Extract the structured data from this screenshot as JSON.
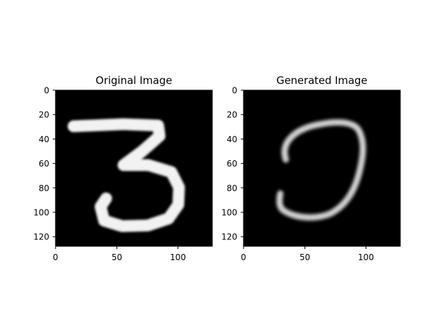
{
  "chart_data": [
    {
      "type": "image",
      "title": "Original Image",
      "image_size": [
        128,
        128
      ],
      "colormap": "gray",
      "content": "handwritten digit 3",
      "xlim": [
        0,
        128
      ],
      "ylim": [
        128,
        0
      ],
      "xticks": [
        0,
        50,
        100
      ],
      "yticks": [
        0,
        20,
        40,
        60,
        80,
        100,
        120
      ],
      "xtick_labels": [
        "0",
        "50",
        "100"
      ],
      "ytick_labels": [
        "0",
        "20",
        "40",
        "60",
        "80",
        "100",
        "120"
      ],
      "background_color": "#000000",
      "stroke_color": "#f2f2f2"
    },
    {
      "type": "image",
      "title": "Generated Image",
      "image_size": [
        128,
        128
      ],
      "colormap": "gray",
      "content": "blurry curved stroke",
      "xlim": [
        0,
        128
      ],
      "ylim": [
        128,
        0
      ],
      "xticks": [
        0,
        50,
        100
      ],
      "yticks": [
        0,
        20,
        40,
        60,
        80,
        100,
        120
      ],
      "xtick_labels": [
        "0",
        "50",
        "100"
      ],
      "ytick_labels": [
        "0",
        "20",
        "40",
        "60",
        "80",
        "100",
        "120"
      ],
      "background_color": "#000000",
      "stroke_color": "#d0d0d0"
    }
  ]
}
